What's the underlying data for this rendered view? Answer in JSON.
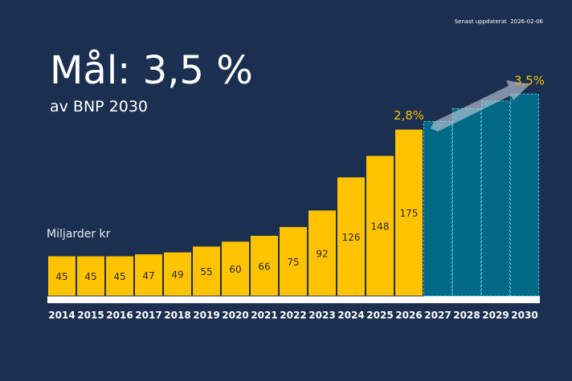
{
  "header": {
    "updated_label": "Senast uppdaterat",
    "updated_date": "2026-02-06",
    "title": "Mål: 3,5 %",
    "subtitle": "av BNP 2030"
  },
  "chart_data": {
    "type": "bar",
    "ylabel": "Miljarder kr",
    "categories": [
      "2014",
      "2015",
      "2016",
      "2017",
      "2018",
      "2019",
      "2020",
      "2021",
      "2022",
      "2023",
      "2024",
      "2025",
      "2026",
      "2027",
      "2028",
      "2029",
      "2030"
    ],
    "series": [
      {
        "values": [
          45,
          45,
          45,
          47,
          49,
          55,
          60,
          66,
          75,
          92,
          126,
          148,
          175,
          null,
          null,
          null,
          null
        ],
        "color": "#ffc300",
        "labels_shown": true
      },
      {
        "values": [
          null,
          null,
          null,
          null,
          null,
          null,
          null,
          null,
          null,
          null,
          null,
          null,
          null,
          183,
          196,
          204,
          211
        ],
        "color": "#006a85",
        "labels_shown": false,
        "style": "dashed-outline projection"
      }
    ],
    "annotations": [
      {
        "text": "2,8%",
        "at": "2026",
        "color": "#f2c200"
      },
      {
        "text": "3,5%",
        "at": "2030",
        "color": "#f2c200"
      }
    ],
    "arrow": "rising arrow over 2027–2030",
    "grid": false,
    "legend": "none"
  }
}
